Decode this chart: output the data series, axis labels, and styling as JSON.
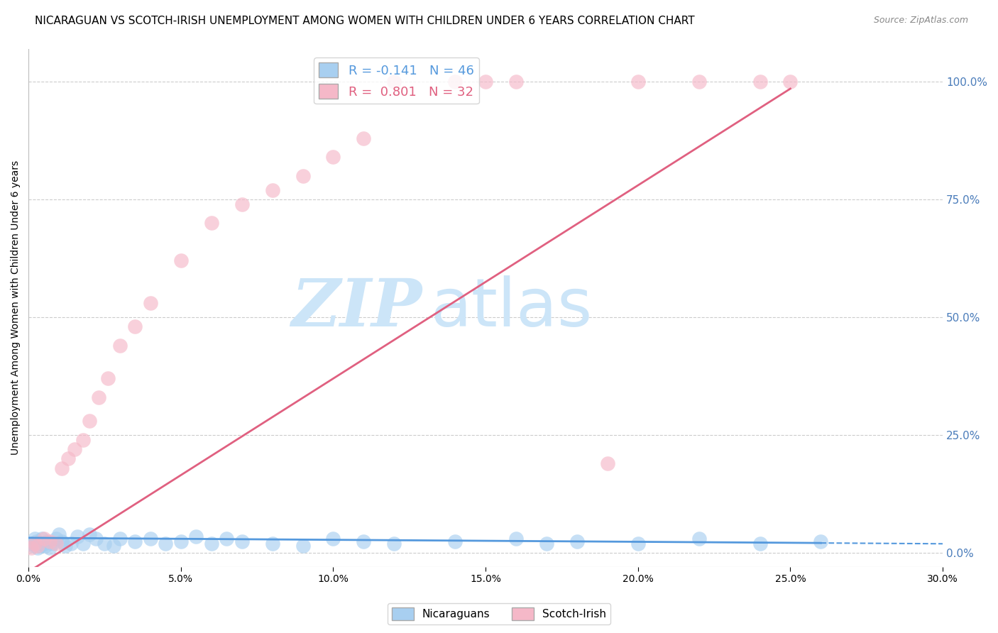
{
  "title": "NICARAGUAN VS SCOTCH-IRISH UNEMPLOYMENT AMONG WOMEN WITH CHILDREN UNDER 6 YEARS CORRELATION CHART",
  "source": "Source: ZipAtlas.com",
  "ylabel": "Unemployment Among Women with Children Under 6 years",
  "x_tick_labels": [
    "0.0%",
    "5.0%",
    "10.0%",
    "15.0%",
    "20.0%",
    "25.0%",
    "30.0%"
  ],
  "x_tick_values": [
    0.0,
    5.0,
    10.0,
    15.0,
    20.0,
    25.0,
    30.0
  ],
  "y_right_tick_labels": [
    "100.0%",
    "75.0%",
    "50.0%",
    "25.0%",
    "0.0%"
  ],
  "y_right_tick_values": [
    100.0,
    75.0,
    50.0,
    25.0,
    0.0
  ],
  "xlim": [
    0.0,
    30.0
  ],
  "ylim": [
    -3.0,
    107.0
  ],
  "legend_r_labels": [
    "R = -0.141   N = 46",
    "R =  0.801   N = 32"
  ],
  "legend_labels": [
    "Nicaraguans",
    "Scotch-Irish"
  ],
  "blue_color": "#a8cff0",
  "pink_color": "#f5b8c8",
  "blue_line_color": "#5599dd",
  "pink_line_color": "#e06080",
  "watermark_zip": "ZIP",
  "watermark_atlas": "atlas",
  "watermark_color": "#cce5f8",
  "background_color": "#ffffff",
  "grid_color": "#cccccc",
  "right_axis_color": "#4a7cba",
  "title_fontsize": 11,
  "source_fontsize": 9,
  "nicaraguan_x": [
    0.1,
    0.15,
    0.2,
    0.25,
    0.3,
    0.35,
    0.4,
    0.45,
    0.5,
    0.55,
    0.6,
    0.7,
    0.8,
    0.9,
    1.0,
    1.1,
    1.2,
    1.4,
    1.6,
    1.8,
    2.0,
    2.2,
    2.5,
    2.8,
    3.0,
    3.5,
    4.0,
    4.5,
    5.0,
    5.5,
    6.0,
    6.5,
    7.0,
    8.0,
    9.0,
    10.0,
    11.0,
    12.0,
    14.0,
    16.0,
    17.0,
    18.0,
    20.0,
    22.0,
    24.0,
    26.0
  ],
  "nicaraguan_y": [
    2.0,
    1.5,
    3.0,
    2.5,
    1.0,
    2.0,
    1.5,
    3.0,
    2.0,
    1.5,
    2.5,
    1.0,
    2.0,
    3.0,
    4.0,
    2.5,
    1.5,
    2.0,
    3.5,
    2.0,
    4.0,
    3.0,
    2.0,
    1.5,
    3.0,
    2.5,
    3.0,
    2.0,
    2.5,
    3.5,
    2.0,
    3.0,
    2.5,
    2.0,
    1.5,
    3.0,
    2.5,
    2.0,
    2.5,
    3.0,
    2.0,
    2.5,
    2.0,
    3.0,
    2.0,
    2.5
  ],
  "scotchirish_x": [
    0.1,
    0.2,
    0.3,
    0.5,
    0.7,
    0.9,
    1.1,
    1.3,
    1.5,
    1.8,
    2.0,
    2.3,
    2.6,
    3.0,
    3.5,
    4.0,
    5.0,
    6.0,
    7.0,
    8.0,
    9.0,
    10.0,
    11.0,
    12.0,
    14.0,
    15.0,
    16.0,
    19.0,
    20.0,
    22.0,
    24.0,
    25.0
  ],
  "scotchirish_y": [
    1.0,
    2.0,
    1.5,
    3.0,
    2.5,
    2.0,
    18.0,
    20.0,
    22.0,
    24.0,
    28.0,
    33.0,
    37.0,
    44.0,
    48.0,
    53.0,
    62.0,
    70.0,
    74.0,
    77.0,
    80.0,
    84.0,
    88.0,
    100.0,
    100.0,
    100.0,
    100.0,
    19.0,
    100.0,
    100.0,
    100.0,
    100.0
  ],
  "nic_trend_slope": -0.042,
  "nic_trend_intercept": 3.2,
  "scotch_trend_slope": 4.1,
  "scotch_trend_intercept": -4.0,
  "nic_solid_x_end": 26.0,
  "scotch_solid_x_end": 25.0
}
